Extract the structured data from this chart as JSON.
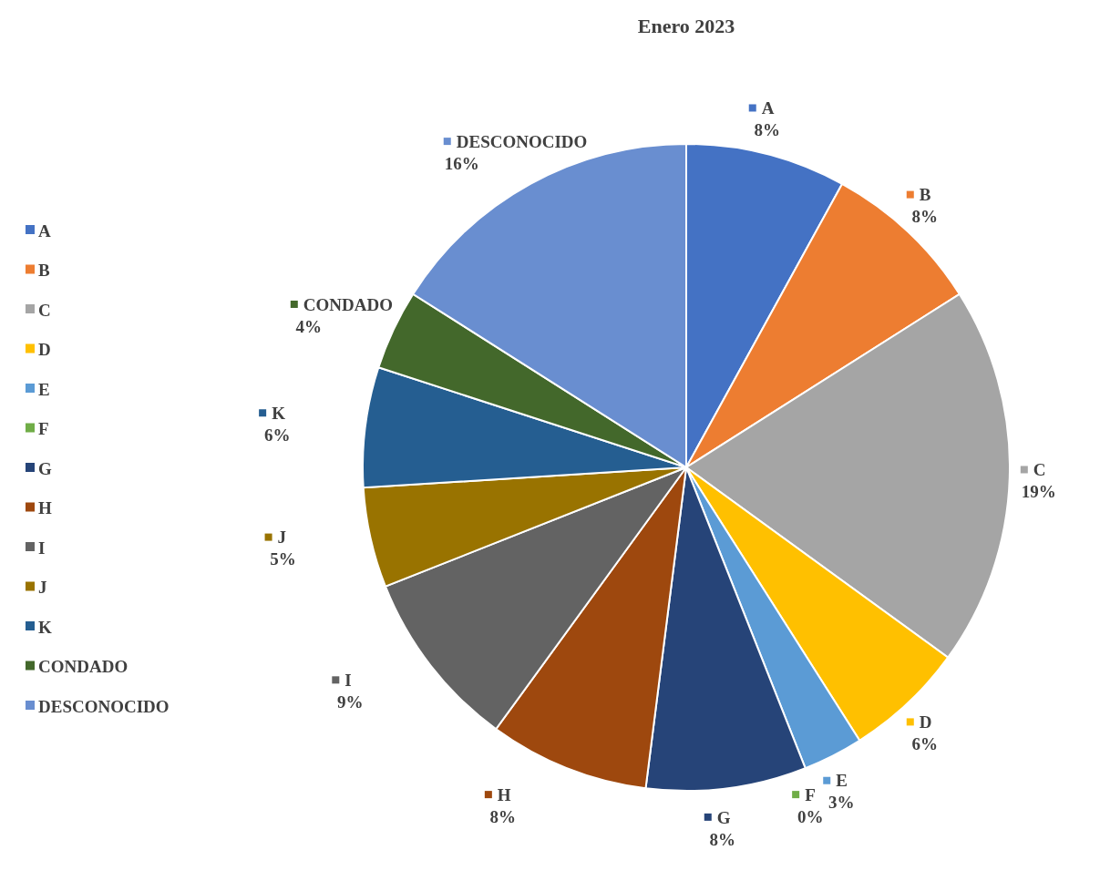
{
  "chart_data": {
    "type": "pie",
    "title": "Enero 2023",
    "categories": [
      "A",
      "B",
      "C",
      "D",
      "E",
      "F",
      "G",
      "H",
      "I",
      "J",
      "K",
      "CONDADO",
      "DESCONOCIDO"
    ],
    "values": [
      8,
      8,
      19,
      6,
      3,
      0,
      8,
      8,
      9,
      5,
      6,
      4,
      16
    ],
    "value_labels": [
      "8%",
      "8%",
      "19%",
      "6%",
      "3%",
      "0%",
      "8%",
      "8%",
      "9%",
      "5%",
      "6%",
      "4%",
      "16%"
    ],
    "colors": [
      "#4472c4",
      "#ed7d31",
      "#a5a5a5",
      "#ffc000",
      "#5b9bd5",
      "#70ad47",
      "#264478",
      "#9e480e",
      "#636363",
      "#997300",
      "#255e91",
      "#43682b",
      "#698ed0"
    ],
    "legend": "left"
  }
}
